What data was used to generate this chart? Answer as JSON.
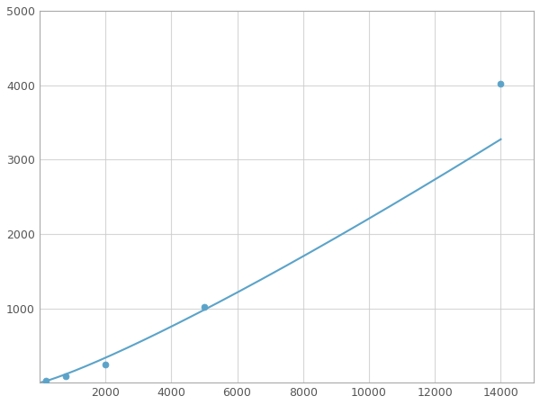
{
  "x_data": [
    200,
    800,
    2000,
    5000,
    14000
  ],
  "y_data": [
    30,
    90,
    250,
    1020,
    4020
  ],
  "line_color": "#5ba3c9",
  "marker_color": "#5ba3c9",
  "marker_size": 5,
  "line_width": 1.5,
  "xlim": [
    0,
    15000
  ],
  "ylim": [
    0,
    5000
  ],
  "xticks": [
    0,
    2000,
    4000,
    6000,
    8000,
    10000,
    12000,
    14000
  ],
  "yticks": [
    0,
    1000,
    2000,
    3000,
    4000,
    5000
  ],
  "xtick_labels": [
    "",
    "2000",
    "4000",
    "6000",
    "8000",
    "10000",
    "12000",
    "14000"
  ],
  "ytick_labels": [
    "",
    "1000",
    "2000",
    "3000",
    "4000",
    "5000"
  ],
  "grid_color": "#cccccc",
  "grid_alpha": 0.8,
  "background_color": "#ffffff",
  "spine_color": "#aaaaaa",
  "power_law_a": 0.155,
  "power_law_b": 1.42
}
